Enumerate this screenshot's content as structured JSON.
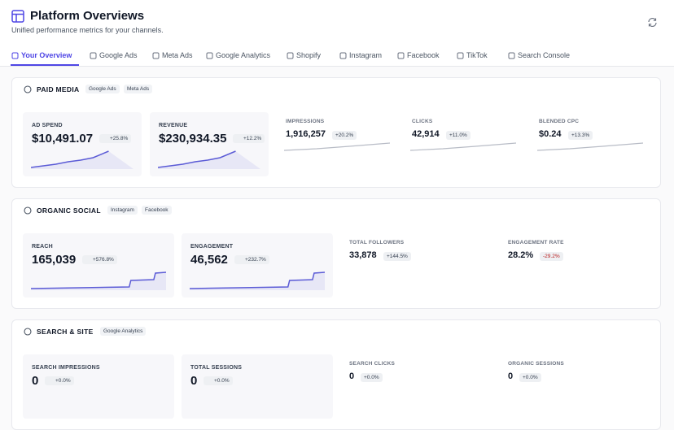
{
  "header": {
    "title": "Platform Overviews",
    "subtitle": "Unified performance metrics for your channels."
  },
  "tabs": [
    "Your Overview",
    "Google Ads",
    "Meta Ads",
    "Google Analytics",
    "Shopify",
    "Instagram",
    "Facebook",
    "TikTok",
    "Search Console"
  ],
  "sections": [
    {
      "title": "PAID MEDIA",
      "badges": [
        "Google Ads",
        "Meta Ads"
      ],
      "metrics": [
        {
          "label": "AD SPEND",
          "value": "$10,491.07",
          "change": "+25.8%"
        },
        {
          "label": "REVENUE",
          "value": "$230,934.35",
          "change": "+12.2%"
        },
        {
          "label": "IMPRESSIONS",
          "value": "1,916,257",
          "change": "+20.2%"
        },
        {
          "label": "CLICKS",
          "value": "42,914",
          "change": "+11.0%"
        },
        {
          "label": "BLENDED CPC",
          "value": "$0.24",
          "change": "+13.3%"
        }
      ]
    },
    {
      "title": "ORGANIC SOCIAL",
      "badges": [
        "Instagram",
        "Facebook"
      ],
      "metrics": [
        {
          "label": "REACH",
          "value": "165,039",
          "change": "+576.8%"
        },
        {
          "label": "ENGAGEMENT",
          "value": "46,562",
          "change": "+232.7%"
        },
        {
          "label": "TOTAL FOLLOWERS",
          "value": "33,878",
          "change": "+144.5%"
        },
        {
          "label": "ENGAGEMENT RATE",
          "value": "28.2%",
          "change": "-29.2%"
        }
      ]
    },
    {
      "title": "SEARCH & SITE",
      "badges": [
        "Google Analytics"
      ],
      "metrics": [
        {
          "label": "SEARCH IMPRESSIONS",
          "value": "0",
          "change": "+0.0%"
        },
        {
          "label": "TOTAL SESSIONS",
          "value": "0",
          "change": "+0.0%"
        },
        {
          "label": "SEARCH CLICKS",
          "value": "0",
          "change": "+0.0%"
        },
        {
          "label": "ORGANIC SESSIONS",
          "value": "0",
          "change": "+0.0%"
        }
      ]
    }
  ]
}
